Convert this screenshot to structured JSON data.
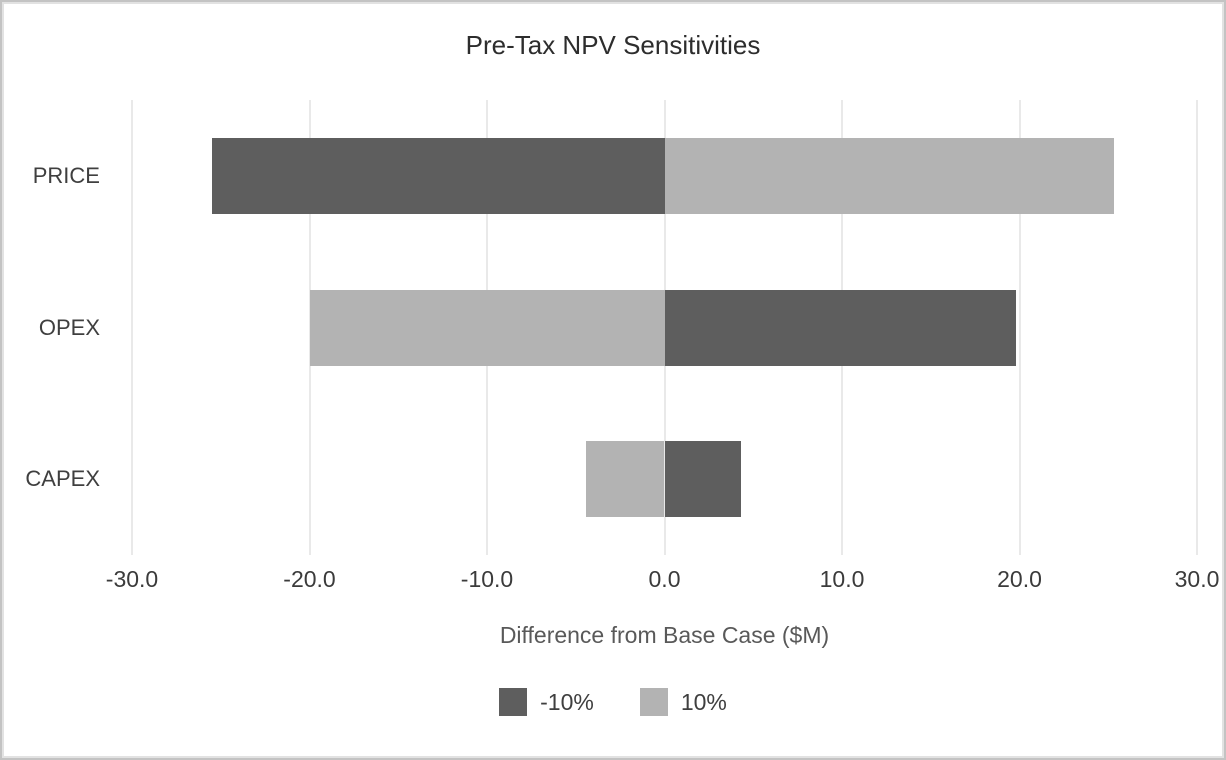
{
  "chart_data": {
    "type": "bar",
    "orientation": "horizontal",
    "variant": "tornado",
    "title": "Pre-Tax NPV Sensitivities",
    "categories": [
      "PRICE",
      "OPEX",
      "CAPEX"
    ],
    "series": [
      {
        "name": "-10%",
        "color": "#5e5e5e",
        "values": [
          -25.5,
          19.8,
          4.3
        ]
      },
      {
        "name": "10%",
        "color": "#b3b3b3",
        "values": [
          25.3,
          -20.0,
          -4.4
        ]
      }
    ],
    "xlabel": "Difference from Base Case ($M)",
    "xlim": [
      -30,
      30
    ],
    "xticks": {
      "values": [
        -30,
        -20,
        -10,
        0,
        10,
        20,
        30
      ],
      "labels": [
        "-30.0",
        "-20.0",
        "-10.0",
        "0.0",
        "10.0",
        "20.0",
        "30.0"
      ]
    },
    "grid": "vertical",
    "legend_position": "bottom-center"
  },
  "colors": {
    "bar_dark": "#5e5e5e",
    "bar_light": "#b3b3b3",
    "gridline": "#e9e9e9",
    "title_text": "#2d2d2d",
    "tick_text": "#3b3b3b",
    "axis_title_text": "#595959",
    "frame_border": "#c3c3c3",
    "background": "#ffffff"
  }
}
